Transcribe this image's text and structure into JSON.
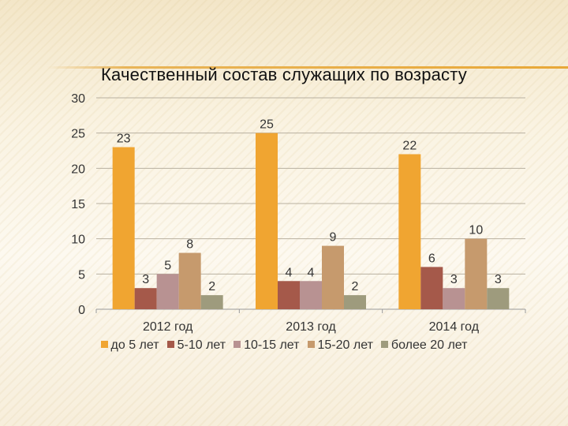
{
  "chart_data": {
    "type": "bar",
    "title": "Качественный состав служащих по возрасту",
    "categories": [
      "2012 год",
      "2013 год",
      "2014 год"
    ],
    "series": [
      {
        "name": "до 5 лет",
        "values": [
          23,
          25,
          22
        ],
        "color": "#f0a531"
      },
      {
        "name": "5-10 лет",
        "values": [
          3,
          4,
          6
        ],
        "color": "#a5594a"
      },
      {
        "name": "10-15 лет",
        "values": [
          5,
          4,
          3
        ],
        "color": "#b89292"
      },
      {
        "name": "15-20 лет",
        "values": [
          8,
          9,
          10
        ],
        "color": "#c69a6d"
      },
      {
        "name": "более 20 лет",
        "values": [
          2,
          2,
          3
        ],
        "color": "#9e9b7d"
      }
    ],
    "ylim": [
      0,
      30
    ],
    "yticks": [
      0,
      5,
      10,
      15,
      20,
      25,
      30
    ],
    "grid": true,
    "legend_position": "bottom",
    "data_labels": true
  }
}
